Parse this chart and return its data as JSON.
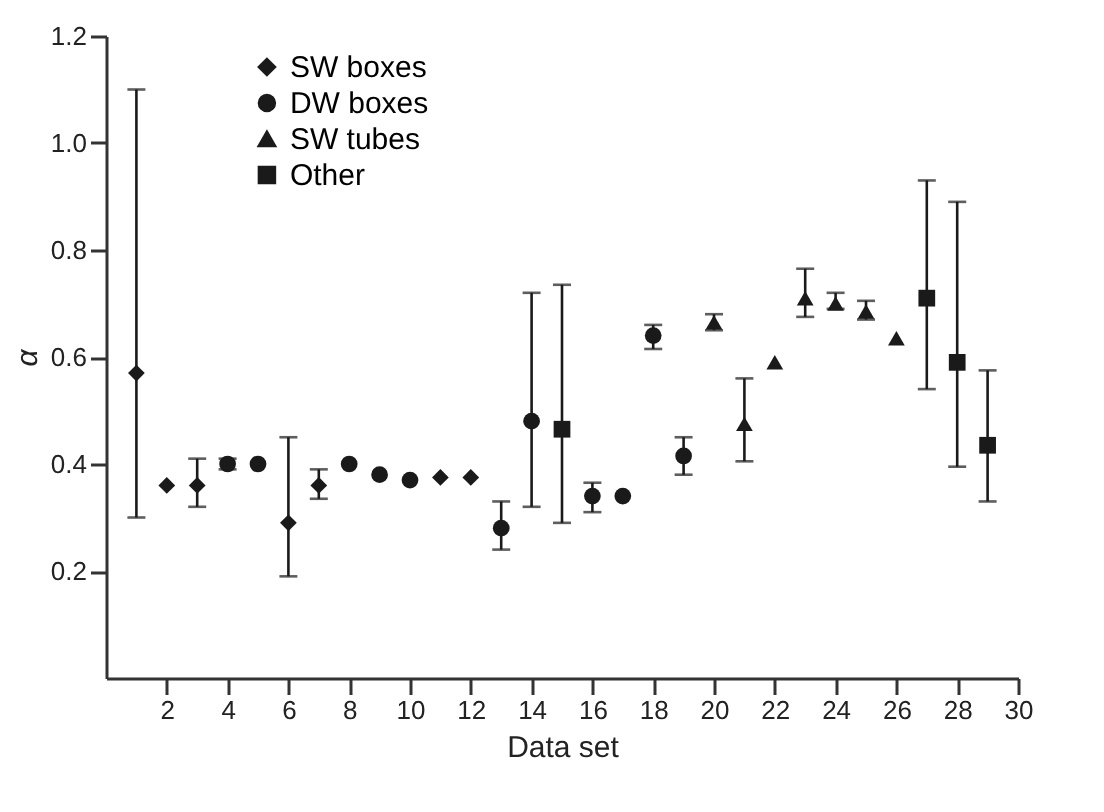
{
  "chart_data": {
    "type": "scatter",
    "xlabel": "Data set",
    "ylabel": "α",
    "xlim": [
      0,
      30
    ],
    "xticks": [
      2,
      4,
      6,
      8,
      10,
      12,
      14,
      16,
      18,
      20,
      22,
      24,
      26,
      28,
      30
    ],
    "ylim": [
      0,
      1.2
    ],
    "yticks": [
      0.2,
      0.4,
      0.6,
      0.8,
      {
        "value": 1.0,
        "label": "1.0"
      },
      1.2
    ],
    "legend": "top left",
    "grid": false,
    "series": [
      {
        "name": "SW boxes",
        "color": "#1a1a1a",
        "marker": "diamond",
        "x": [
          1,
          2,
          3,
          6,
          7,
          11,
          12
        ],
        "values": [
          0.57,
          0.36,
          0.36,
          0.29,
          0.36,
          0.375,
          0.375
        ],
        "errors": [
          [
            0.3,
            1.1
          ],
          null,
          [
            0.32,
            0.41
          ],
          [
            0.19,
            0.45
          ],
          [
            0.335,
            0.39
          ],
          null,
          null
        ]
      },
      {
        "name": "DW boxes",
        "color": "#1a1a1a",
        "marker": "circle",
        "x": [
          4,
          5,
          8,
          9,
          10,
          13,
          14,
          16,
          17,
          18,
          19
        ],
        "values": [
          0.4,
          0.4,
          0.4,
          0.38,
          0.37,
          0.28,
          0.48,
          0.34,
          0.34,
          0.64,
          0.415
        ],
        "errors": [
          [
            0.39,
            0.41
          ],
          null,
          null,
          null,
          null,
          [
            0.24,
            0.33
          ],
          [
            0.32,
            0.72
          ],
          [
            0.31,
            0.365
          ],
          null,
          [
            0.615,
            0.66
          ],
          [
            0.38,
            0.45
          ]
        ]
      },
      {
        "name": "SW tubes",
        "color": "#1a1a1a",
        "marker": "triangle",
        "x": [
          20,
          21,
          22,
          23,
          24,
          25,
          26
        ],
        "values": [
          0.665,
          0.475,
          0.59,
          0.71,
          0.7,
          0.685,
          0.635
        ],
        "errors": [
          [
            0.65,
            0.68
          ],
          [
            0.405,
            0.56
          ],
          null,
          [
            0.675,
            0.765
          ],
          [
            0.69,
            0.72
          ],
          [
            0.67,
            0.705
          ],
          null
        ]
      },
      {
        "name": "Other",
        "color": "#1a1a1a",
        "marker": "square",
        "x": [
          15,
          27,
          28,
          29
        ],
        "values": [
          0.465,
          0.71,
          0.59,
          0.435
        ],
        "errors": [
          [
            0.29,
            0.735
          ],
          [
            0.54,
            0.93
          ],
          [
            0.395,
            0.89
          ],
          [
            0.33,
            0.575
          ]
        ]
      }
    ]
  }
}
